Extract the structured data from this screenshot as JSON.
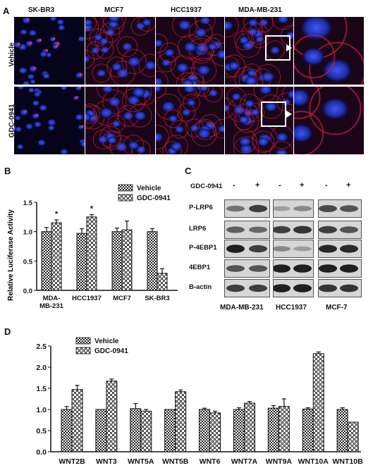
{
  "panel_a": {
    "letter": "A",
    "columns": [
      "SK-BR3",
      "MCF7",
      "HCC1937",
      "MDA-MB-231"
    ],
    "rows": [
      "Vehicle",
      "GDC-0941"
    ]
  },
  "panel_b": {
    "letter": "B",
    "ylabel": "Relative Luciferase Activity",
    "yticks": [
      "0.0",
      "0.5",
      "1.0",
      "1.5"
    ],
    "legend": [
      "Vehicle",
      "GDC-0941"
    ],
    "significance": "*"
  },
  "panel_c": {
    "letter": "C",
    "treatment_label": "GDC-0941",
    "signs": [
      "-",
      "+"
    ],
    "proteins": [
      "P-LRP6",
      "LRP6",
      "P-4EBP1",
      "4EBP1",
      "B-actin"
    ],
    "lanes": [
      "MDA-MB-231",
      "HCC1937",
      "MCF-7"
    ]
  },
  "panel_d": {
    "letter": "D",
    "yticks": [
      "0.0",
      "0.5",
      "1.0",
      "1.5",
      "2.0",
      "2.5"
    ],
    "legend": [
      "Vehicle",
      "GDC-0941"
    ]
  },
  "chart_data": [
    {
      "type": "bar",
      "categories": [
        "MDA-MB-231",
        "HCC1937",
        "MCF7",
        "SK-BR3"
      ],
      "category_labels": [
        [
          "MDA-",
          "MB-231"
        ],
        [
          "HCC1937"
        ],
        [
          "MCF7"
        ],
        [
          "SK-BR3"
        ]
      ],
      "series": [
        {
          "name": "Vehicle",
          "values": [
            1.0,
            0.97,
            1.0,
            1.0
          ],
          "errors": [
            0.07,
            0.08,
            0.06,
            0.05
          ]
        },
        {
          "name": "GDC-0941",
          "values": [
            1.15,
            1.25,
            1.03,
            0.29
          ],
          "errors": [
            0.05,
            0.04,
            0.15,
            0.08
          ]
        }
      ],
      "significant": [
        true,
        true,
        false,
        false
      ],
      "ylabel": "Relative Luciferase Activity",
      "ylim": [
        0,
        1.5
      ],
      "yticks": [
        0.0,
        0.5,
        1.0,
        1.5
      ],
      "legend": "top-right"
    },
    {
      "type": "bar",
      "categories": [
        "WNT2B",
        "WNT3",
        "WNT5A",
        "WNT5B",
        "WNT6",
        "WNT7A",
        "WNT9A",
        "WNT10A",
        "WNT10B"
      ],
      "series": [
        {
          "name": "Vehicle",
          "values": [
            1.0,
            1.0,
            1.02,
            1.0,
            1.0,
            1.0,
            1.03,
            1.01,
            1.0
          ],
          "errors": [
            0.07,
            0.0,
            0.12,
            0.0,
            0.03,
            0.04,
            0.06,
            0.03,
            0.04
          ]
        },
        {
          "name": "GDC-0941",
          "values": [
            1.47,
            1.67,
            0.96,
            1.42,
            0.92,
            1.15,
            1.07,
            2.32,
            0.7
          ]
        }
      ],
      "gdc_errors": [
        0.1,
        0.05,
        0.04,
        0.04,
        0.04,
        0.04,
        0.18,
        0.04,
        0.0
      ],
      "ylim": [
        0,
        2.5
      ],
      "yticks": [
        0.0,
        0.5,
        1.0,
        1.5,
        2.0,
        2.5
      ],
      "legend": "top-left"
    }
  ]
}
